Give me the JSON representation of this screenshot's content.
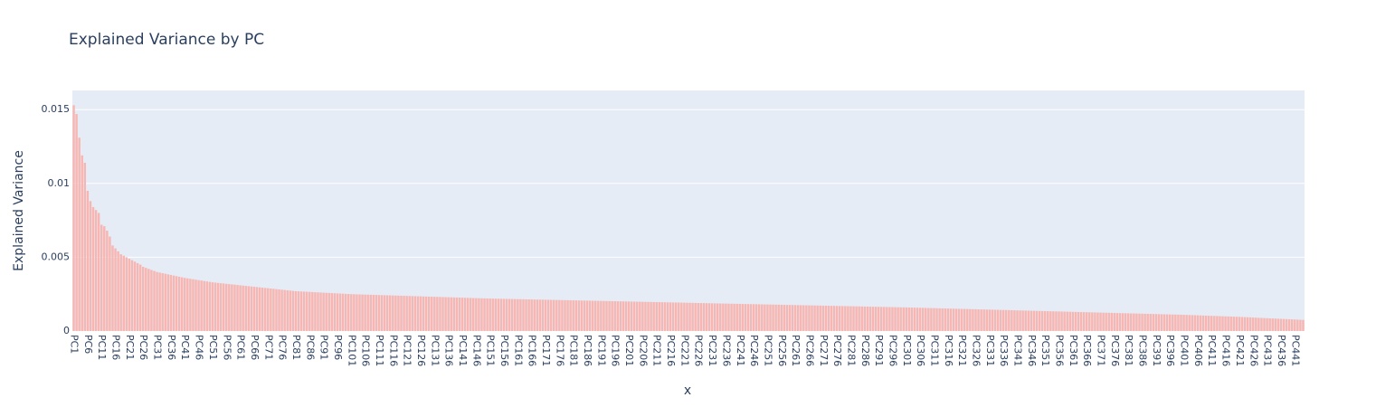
{
  "chart_data": {
    "type": "bar",
    "title": "Explained Variance by PC",
    "xlabel": "x",
    "ylabel": "Explained Variance",
    "color": "#f7b6b2",
    "grid": true,
    "ylim": [
      0,
      0.0163
    ],
    "yticks": [
      0,
      0.005,
      0.01,
      0.015
    ],
    "categories": [
      "PC1",
      null,
      null,
      null,
      null,
      "PC6",
      null,
      null,
      null,
      null,
      "PC11",
      null,
      null,
      null,
      null,
      "PC16",
      null,
      null,
      null,
      null,
      "PC21",
      null,
      null,
      null,
      null,
      "PC26",
      null,
      null,
      null,
      null,
      "PC31",
      null,
      null,
      null,
      null,
      "PC36",
      null,
      null,
      null,
      null,
      "PC41",
      null,
      null,
      null,
      null,
      "PC46",
      null,
      null,
      null,
      null,
      "PC51",
      null,
      null,
      null,
      null,
      "PC56",
      null,
      null,
      null,
      null,
      "PC61",
      null,
      null,
      null,
      null,
      "PC66",
      null,
      null,
      null,
      null,
      "PC71",
      null,
      null,
      null,
      null,
      "PC76",
      null,
      null,
      null,
      null,
      "PC81",
      null,
      null,
      null,
      null,
      "PC86",
      null,
      null,
      null,
      null,
      "PC91",
      null,
      null,
      null,
      null,
      "PC96",
      null,
      null,
      null,
      null,
      "PC101",
      null,
      null,
      null,
      null,
      "PC106",
      null,
      null,
      null,
      null,
      "PC111",
      null,
      null,
      null,
      null,
      "PC116",
      null,
      null,
      null,
      null,
      "PC121",
      null,
      null,
      null,
      null,
      "PC126",
      null,
      null,
      null,
      null,
      "PC131",
      null,
      null,
      null,
      null,
      "PC136",
      null,
      null,
      null,
      null,
      "PC141",
      null,
      null,
      null,
      null,
      "PC146",
      null,
      null,
      null,
      null,
      "PC151",
      null,
      null,
      null,
      null,
      "PC156",
      null,
      null,
      null,
      null,
      "PC161",
      null,
      null,
      null,
      null,
      "PC166",
      null,
      null,
      null,
      null,
      "PC171",
      null,
      null,
      null,
      null,
      "PC176",
      null,
      null,
      null,
      null,
      "PC181",
      null,
      null,
      null,
      null,
      "PC186",
      null,
      null,
      null,
      null,
      "PC191",
      null,
      null,
      null,
      null,
      "PC196",
      null,
      null,
      null,
      null,
      "PC201",
      null,
      null,
      null,
      null,
      "PC206",
      null,
      null,
      null,
      null,
      "PC211",
      null,
      null,
      null,
      null,
      "PC216",
      null,
      null,
      null,
      null,
      "PC221",
      null,
      null,
      null,
      null,
      "PC226",
      null,
      null,
      null,
      null,
      "PC231",
      null,
      null,
      null,
      null,
      "PC236",
      null,
      null,
      null,
      null,
      "PC241",
      null,
      null,
      null,
      null,
      "PC246",
      null,
      null,
      null,
      null,
      "PC251",
      null,
      null,
      null,
      null,
      "PC256",
      null,
      null,
      null,
      null,
      "PC261",
      null,
      null,
      null,
      null,
      "PC266",
      null,
      null,
      null,
      null,
      "PC271",
      null,
      null,
      null,
      null,
      "PC276",
      null,
      null,
      null,
      null,
      "PC281",
      null,
      null,
      null,
      null,
      "PC286",
      null,
      null,
      null,
      null,
      "PC291",
      null,
      null,
      null,
      null,
      "PC296",
      null,
      null,
      null,
      null,
      "PC301",
      null,
      null,
      null,
      null,
      "PC306",
      null,
      null,
      null,
      null,
      "PC311",
      null,
      null,
      null,
      null,
      "PC316",
      null,
      null,
      null,
      null,
      "PC321",
      null,
      null,
      null,
      null,
      "PC326",
      null,
      null,
      null,
      null,
      "PC331",
      null,
      null,
      null,
      null,
      "PC336",
      null,
      null,
      null,
      null,
      "PC341",
      null,
      null,
      null,
      null,
      "PC346",
      null,
      null,
      null,
      null,
      "PC351",
      null,
      null,
      null,
      null,
      "PC356",
      null,
      null,
      null,
      null,
      "PC361",
      null,
      null,
      null,
      null,
      "PC366",
      null,
      null,
      null,
      null,
      "PC371",
      null,
      null,
      null,
      null,
      "PC376",
      null,
      null,
      null,
      null,
      "PC381",
      null,
      null,
      null,
      null,
      "PC386",
      null,
      null,
      null,
      null,
      "PC391",
      null,
      null,
      null,
      null,
      "PC396",
      null,
      null,
      null,
      null,
      "PC401",
      null,
      null,
      null,
      null,
      "PC406",
      null,
      null,
      null,
      null,
      "PC411",
      null,
      null,
      null,
      null,
      "PC416",
      null,
      null,
      null,
      null,
      "PC421",
      null,
      null,
      null,
      null,
      "PC426",
      null,
      null,
      null,
      null,
      "PC431",
      null,
      null,
      null,
      null,
      "PC436",
      null,
      null,
      null,
      null,
      "PC441",
      null,
      null,
      null
    ],
    "values": [
      0.0153,
      0.0147,
      0.0131,
      0.0119,
      0.0114,
      0.0095,
      0.0088,
      0.0084,
      0.0082,
      0.008,
      0.0072,
      0.0071,
      0.0068,
      0.0064,
      0.0058,
      0.0056,
      0.0054,
      0.0052,
      0.0051,
      0.005,
      0.0049,
      0.0048,
      0.0047,
      0.0046,
      0.0045,
      0.00435,
      0.00428,
      0.00421,
      0.00414,
      0.00407,
      0.004,
      0.00396,
      0.00392,
      0.00388,
      0.00384,
      0.0038,
      0.00376,
      0.00372,
      0.00368,
      0.00364,
      0.0036,
      0.00357,
      0.00354,
      0.00351,
      0.00348,
      0.00345,
      0.00342,
      0.00339,
      0.00336,
      0.00333,
      0.0033,
      0.00328,
      0.00326,
      0.00324,
      0.00322,
      0.0032,
      0.00318,
      0.00316,
      0.00314,
      0.00312,
      0.0031,
      0.00308,
      0.00306,
      0.00304,
      0.00302,
      0.003,
      0.00298,
      0.00296,
      0.00294,
      0.00292,
      0.0029,
      0.00288,
      0.00286,
      0.00284,
      0.00282,
      0.0028,
      0.00278,
      0.00276,
      0.00274,
      0.00272,
      0.0027,
      0.00269,
      0.00268,
      0.00267,
      0.00266,
      0.00265,
      0.00264,
      0.00263,
      0.00262,
      0.00261,
      0.0026,
      0.00259,
      0.00258,
      0.00257,
      0.00256,
      0.00255,
      0.00254,
      0.00253,
      0.00252,
      0.00251,
      0.0025,
      0.002494,
      0.002488,
      0.002482,
      0.002476,
      0.00247,
      0.002464,
      0.002458,
      0.002452,
      0.002446,
      0.00244,
      0.002434,
      0.002428,
      0.002422,
      0.002416,
      0.00241,
      0.002404,
      0.002398,
      0.002392,
      0.002386,
      0.00238,
      0.002374,
      0.002368,
      0.002362,
      0.002356,
      0.00235,
      0.002344,
      0.002338,
      0.002332,
      0.002326,
      0.00232,
      0.002314,
      0.002308,
      0.002302,
      0.002296,
      0.00229,
      0.002284,
      0.002278,
      0.002272,
      0.002266,
      0.00226,
      0.002254,
      0.002248,
      0.002242,
      0.002236,
      0.00223,
      0.002224,
      0.002218,
      0.002212,
      0.002206,
      0.0022,
      0.002196,
      0.002192,
      0.002188,
      0.002184,
      0.00218,
      0.002176,
      0.002172,
      0.002168,
      0.002164,
      0.00216,
      0.002156,
      0.002152,
      0.002148,
      0.002144,
      0.00214,
      0.002136,
      0.002132,
      0.002128,
      0.002124,
      0.00212,
      0.002116,
      0.002112,
      0.002108,
      0.002104,
      0.0021,
      0.002096,
      0.002092,
      0.002088,
      0.002084,
      0.00208,
      0.002076,
      0.002072,
      0.002068,
      0.002064,
      0.00206,
      0.002056,
      0.002052,
      0.002048,
      0.002044,
      0.00204,
      0.002036,
      0.002032,
      0.002028,
      0.002024,
      0.00202,
      0.002016,
      0.002012,
      0.002008,
      0.002004,
      0.002,
      0.001996,
      0.001992,
      0.001988,
      0.001984,
      0.00198,
      0.001976,
      0.001972,
      0.001968,
      0.001964,
      0.00196,
      0.001956,
      0.001952,
      0.001948,
      0.001944,
      0.00194,
      0.001936,
      0.001932,
      0.001928,
      0.001924,
      0.00192,
      0.001916,
      0.001912,
      0.001908,
      0.001904,
      0.0019,
      0.001896,
      0.001892,
      0.001888,
      0.001884,
      0.00188,
      0.001876,
      0.001872,
      0.001868,
      0.001864,
      0.00186,
      0.001856,
      0.001852,
      0.001848,
      0.001844,
      0.00184,
      0.001836,
      0.001832,
      0.001828,
      0.001824,
      0.00182,
      0.001816,
      0.001812,
      0.001808,
      0.001804,
      0.0018,
      0.001796,
      0.001792,
      0.001788,
      0.001784,
      0.00178,
      0.001776,
      0.001772,
      0.001768,
      0.001764,
      0.00176,
      0.001756,
      0.001752,
      0.001748,
      0.001744,
      0.00174,
      0.001736,
      0.001732,
      0.001728,
      0.001724,
      0.00172,
      0.001716,
      0.001712,
      0.001708,
      0.001704,
      0.0017,
      0.001696,
      0.001692,
      0.001688,
      0.001684,
      0.00168,
      0.001676,
      0.001672,
      0.001668,
      0.001664,
      0.00166,
      0.001656,
      0.001652,
      0.001648,
      0.001644,
      0.00164,
      0.001636,
      0.001632,
      0.001628,
      0.001624,
      0.00162,
      0.001616,
      0.001612,
      0.001608,
      0.001604,
      0.0016,
      0.001595,
      0.00159,
      0.001585,
      0.00158,
      0.001575,
      0.00157,
      0.001565,
      0.00156,
      0.001555,
      0.00155,
      0.001545,
      0.00154,
      0.001535,
      0.00153,
      0.001525,
      0.00152,
      0.001515,
      0.00151,
      0.001505,
      0.0015,
      0.001495,
      0.00149,
      0.001485,
      0.00148,
      0.001475,
      0.00147,
      0.001465,
      0.00146,
      0.001455,
      0.00145,
      0.001445,
      0.00144,
      0.001435,
      0.00143,
      0.001425,
      0.00142,
      0.001415,
      0.00141,
      0.001405,
      0.0014,
      0.001395,
      0.00139,
      0.001385,
      0.00138,
      0.001375,
      0.00137,
      0.001365,
      0.00136,
      0.001355,
      0.00135,
      0.001345,
      0.00134,
      0.001335,
      0.00133,
      0.001325,
      0.00132,
      0.001315,
      0.00131,
      0.001305,
      0.0013,
      0.001295,
      0.00129,
      0.001285,
      0.00128,
      0.001275,
      0.00127,
      0.001265,
      0.00126,
      0.001255,
      0.00125,
      0.001245,
      0.00124,
      0.001235,
      0.00123,
      0.001225,
      0.00122,
      0.001215,
      0.00121,
      0.001205,
      0.0012,
      0.001195,
      0.00119,
      0.001185,
      0.00118,
      0.001175,
      0.00117,
      0.001165,
      0.00116,
      0.001155,
      0.00115,
      0.001145,
      0.00114,
      0.001135,
      0.00113,
      0.001125,
      0.00112,
      0.001115,
      0.00111,
      0.001105,
      0.0011,
      0.001093,
      0.001086,
      0.001079,
      0.001072,
      0.001065,
      0.001058,
      0.001051,
      0.001044,
      0.001037,
      0.00103,
      0.001023,
      0.001016,
      0.001009,
      0.001002,
      0.000995,
      0.000988,
      0.000981,
      0.000974,
      0.000967,
      0.00096,
      0.000951,
      0.000942,
      0.000933,
      0.000924,
      0.000915,
      0.000906,
      0.000897,
      0.000888,
      0.000879,
      0.00087,
      0.000861,
      0.000852,
      0.000843,
      0.000834,
      0.000825,
      0.000816,
      0.000807,
      0.000798,
      0.000789,
      0.00078,
      0.000771,
      0.000762,
      0.000753
    ]
  }
}
